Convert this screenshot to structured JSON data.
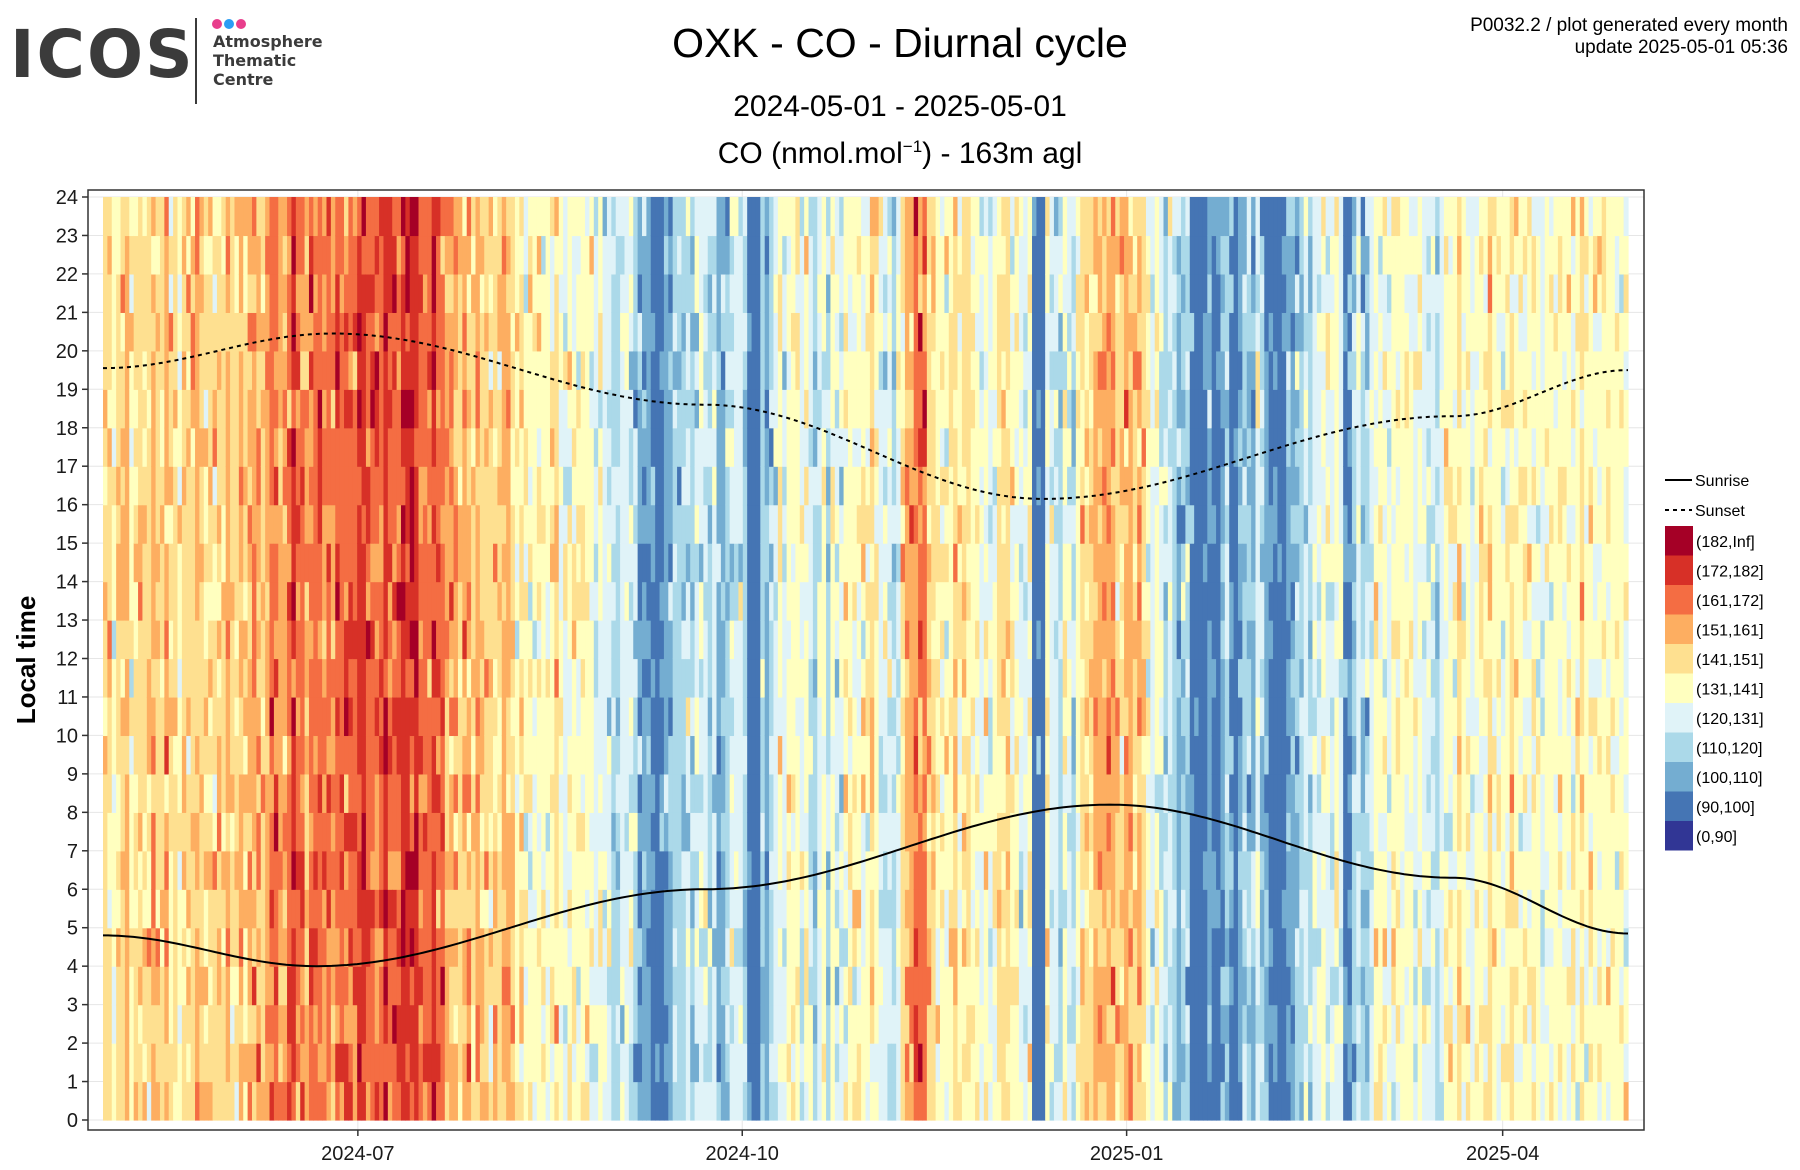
{
  "logo": {
    "wordmark": "ICOS",
    "line1": "Atmosphere",
    "line2": "Thematic",
    "line3": "Centre",
    "dot_colors": [
      "#e83e8c",
      "#2a9df4",
      "#e83e8c"
    ]
  },
  "header": {
    "title": "OXK - CO - Diurnal cycle",
    "subtitle": "2024-05-01 - 2025-05-01",
    "unit_prefix": "CO (nmol.mol",
    "unit_exp": "−1",
    "unit_suffix": ") - 163m agl",
    "meta_line1": "P0032.2 / plot generated every month",
    "meta_line2": "update  2025-05-01 05:36"
  },
  "chart_data": {
    "type": "heatmap",
    "title": "OXK - CO - Diurnal cycle",
    "subtitle": "2024-05-01 - 2025-05-01",
    "ylabel": "Local time",
    "xlabel": "",
    "x_range": [
      "2024-05-01",
      "2025-05-01"
    ],
    "x_ticks": [
      "2024-07",
      "2024-10",
      "2025-01",
      "2025-04"
    ],
    "x_tick_dates": [
      "2024-07-01",
      "2024-10-01",
      "2025-01-01",
      "2025-04-01"
    ],
    "y_ticks": [
      0,
      1,
      2,
      3,
      4,
      5,
      6,
      7,
      8,
      9,
      10,
      11,
      12,
      13,
      14,
      15,
      16,
      17,
      18,
      19,
      20,
      21,
      22,
      23,
      24
    ],
    "ylim": [
      0,
      24
    ],
    "grid": true,
    "legend_position": "right",
    "bins": [
      {
        "label": "(182,Inf]",
        "color": "#a50026"
      },
      {
        "label": "(172,182]",
        "color": "#d73027"
      },
      {
        "label": "(161,172]",
        "color": "#f46d43"
      },
      {
        "label": "(151,161]",
        "color": "#fdae61"
      },
      {
        "label": "(141,151]",
        "color": "#fee090"
      },
      {
        "label": "(131,141]",
        "color": "#ffffbf"
      },
      {
        "label": "(120,131]",
        "color": "#e0f3f8"
      },
      {
        "label": "(110,120]",
        "color": "#abd9e9"
      },
      {
        "label": "(100,110]",
        "color": "#74add1"
      },
      {
        "label": "(90,100]",
        "color": "#4575b4"
      },
      {
        "label": "(0,90]",
        "color": "#313695"
      }
    ],
    "lines": [
      {
        "name": "Sunrise",
        "style": "solid",
        "points": [
          [
            "2024-05-01",
            4.8
          ],
          [
            "2024-06-21",
            4.0
          ],
          [
            "2024-09-22",
            6.0
          ],
          [
            "2024-12-28",
            8.2
          ],
          [
            "2025-03-20",
            6.3
          ],
          [
            "2025-05-01",
            4.85
          ]
        ]
      },
      {
        "name": "Sunset",
        "style": "dashed",
        "points": [
          [
            "2024-05-01",
            19.55
          ],
          [
            "2024-06-25",
            20.45
          ],
          [
            "2024-09-22",
            18.6
          ],
          [
            "2024-12-12",
            16.15
          ],
          [
            "2025-03-20",
            18.3
          ],
          [
            "2025-05-01",
            19.5
          ]
        ]
      }
    ],
    "daily_levels": [
      6,
      6,
      5,
      6,
      6,
      7,
      5,
      6,
      6,
      6,
      6,
      7,
      6,
      6,
      7,
      6,
      6,
      5,
      6,
      6,
      6,
      7,
      6,
      6,
      6,
      6,
      6,
      6,
      7,
      6,
      6,
      7,
      6,
      7,
      7,
      7,
      6,
      7,
      8,
      8,
      7,
      7,
      8,
      9,
      8,
      8,
      7,
      8,
      8,
      8,
      7,
      8,
      7,
      8,
      8,
      8,
      8,
      8,
      9,
      9,
      8,
      8,
      8,
      8,
      9,
      8,
      8,
      8,
      9,
      9,
      9,
      9,
      8,
      8,
      8,
      9,
      8,
      8,
      7,
      7,
      7,
      6,
      7,
      7,
      6,
      7,
      6,
      6,
      6,
      6,
      6,
      7,
      7,
      6,
      5,
      6,
      5,
      5,
      5,
      5,
      5,
      5,
      5,
      6,
      5,
      4,
      5,
      5,
      5,
      5,
      5,
      5,
      4,
      5,
      4,
      4,
      3,
      3,
      4,
      4,
      4,
      3,
      2,
      2,
      2,
      1,
      0,
      1,
      2,
      2,
      3,
      3,
      3,
      4,
      3,
      4,
      4,
      4,
      3,
      4,
      2,
      2,
      3,
      4,
      4,
      4,
      3,
      1,
      0,
      0,
      3,
      2,
      3,
      4,
      5,
      4,
      5,
      5,
      5,
      4,
      5,
      4,
      3,
      4,
      5,
      3,
      5,
      4,
      4,
      5,
      5,
      5,
      5,
      5,
      5,
      6,
      5,
      4,
      4,
      4,
      3,
      4,
      6,
      7,
      7,
      8,
      8,
      8,
      6,
      6,
      5,
      5,
      5,
      5,
      6,
      5,
      6,
      6,
      5,
      5,
      4,
      5,
      4,
      5,
      6,
      6,
      6,
      5,
      5,
      4,
      4,
      5,
      0,
      1,
      0,
      5,
      4,
      4,
      3,
      5,
      4,
      3,
      5,
      6,
      6,
      6,
      7,
      7,
      7,
      7,
      7,
      6,
      6,
      7,
      7,
      6,
      7,
      6,
      5,
      4,
      5,
      4,
      3,
      4,
      3,
      2,
      3,
      3,
      1,
      0,
      0,
      1,
      2,
      1,
      1,
      2,
      3,
      1,
      0,
      2,
      3,
      3,
      2,
      4,
      3,
      2,
      1,
      1,
      0,
      1,
      2,
      2,
      3,
      3,
      4,
      3,
      4,
      4,
      5,
      4,
      4,
      5,
      4,
      1,
      1,
      3,
      4,
      3,
      3,
      4,
      5,
      5,
      5,
      4,
      5,
      5,
      5,
      5,
      5,
      4,
      5,
      4,
      4,
      4,
      3,
      4,
      5,
      5,
      5,
      6,
      5,
      5,
      4,
      5,
      5,
      5,
      6,
      5,
      5,
      5,
      5,
      6,
      5,
      5,
      5,
      5,
      5,
      5,
      4,
      5,
      5,
      5,
      5,
      5,
      5,
      5,
      5,
      6,
      5,
      5,
      5,
      5,
      5,
      5,
      5,
      5,
      5,
      5
    ]
  },
  "legend_lines": [
    {
      "label": "Sunrise"
    },
    {
      "label": "Sunset"
    }
  ]
}
